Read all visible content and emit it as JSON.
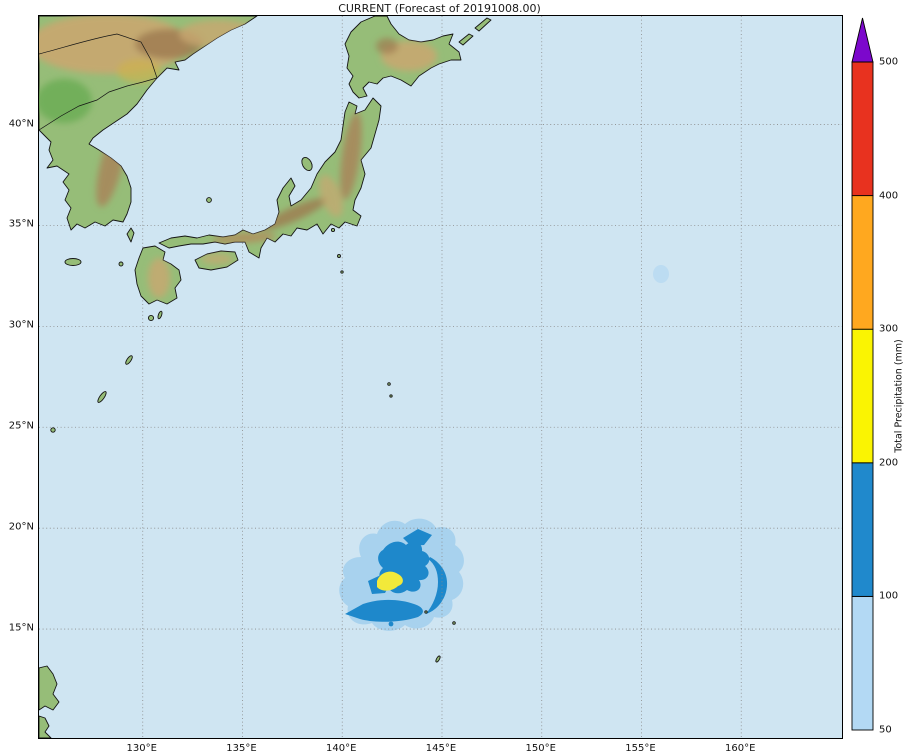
{
  "title": "CURRENT (Forecast of 20191008.00)",
  "map": {
    "x_tick_labels": [
      "130°E",
      "135°E",
      "140°E",
      "145°E",
      "150°E",
      "155°E",
      "160°E"
    ],
    "x_tick_lons": [
      130,
      135,
      140,
      145,
      150,
      155,
      160
    ],
    "y_tick_labels": [
      "40°N",
      "35°N",
      "30°N",
      "25°N",
      "20°N",
      "15°N"
    ],
    "y_tick_lats": [
      40,
      35,
      30,
      25,
      20,
      15
    ],
    "grid_step_deg": 5
  },
  "colorbar": {
    "label": "Total Precipitation (mm)",
    "tick_labels_top_to_bottom": [
      "500",
      "400",
      "300",
      "200",
      "100",
      "50"
    ],
    "extend": "max",
    "segments_bottom_to_top": [
      {
        "range_mm": "50-100",
        "color": "#b3d9f4"
      },
      {
        "range_mm": "100-200",
        "color": "#2089cc"
      },
      {
        "range_mm": "200-300",
        "color": "#faf402"
      },
      {
        "range_mm": "300-400",
        "color": "#ffa81f"
      },
      {
        "range_mm": "400-500",
        "color": "#e8321f"
      }
    ],
    "arrow_color": "#7c08cc"
  },
  "colors": {
    "ocean": "#cfe5f2",
    "land_green": "#96bd78",
    "land_tan": "#c9a770",
    "land_brown": "#9e7a50",
    "coastline": "#141414",
    "gridline": "#8a8a8a",
    "precip_light": "#a8d2ee",
    "precip_blue": "#1e88cb",
    "precip_yellow": "#f2e93a",
    "faint_spot": "#bcdcf2"
  },
  "chart_data": {
    "type": "map",
    "projection": "plate-carree",
    "region": "Japan, Korea and Northwest Pacific",
    "title": "CURRENT (Forecast of 20191008.00)",
    "extent": {
      "lon_min_e": 125,
      "lon_max_e": 165,
      "lat_min_n": 10,
      "lat_max_n": 45
    },
    "gridlines": {
      "lon_step_deg": 5,
      "lat_step_deg": 5,
      "style": "dotted"
    },
    "colorbar": {
      "label": "Total Precipitation (mm)",
      "levels_mm": [
        50,
        100,
        200,
        300,
        400,
        500
      ],
      "extend": "max"
    },
    "visible_land": [
      "NE China / Russia mainland",
      "Korean Peninsula",
      "Jeju",
      "Kyushu",
      "Shikoku",
      "Honshu",
      "Hokkaido",
      "Kuril Islands",
      "Sado",
      "Ryukyu Islands",
      "Ogasawara specks",
      "Mariana island specks",
      "Eastern Philippines"
    ],
    "precipitation_features": [
      {
        "description": "tropical-cyclone precipitation swirl southeast of Japan",
        "center_lon_e": 142.7,
        "center_lat_n": 17.5,
        "approx_radius_deg": 3,
        "outer_band_mm": "50-100",
        "spiral_band_mm": "100-200",
        "peak_patch_mm": "200-300"
      },
      {
        "description": "faint isolated light precipitation spot",
        "center_lon_e": 155.8,
        "center_lat_n": 32.6,
        "approx_radius_deg": 0.4,
        "band_mm": "50-100"
      }
    ]
  }
}
